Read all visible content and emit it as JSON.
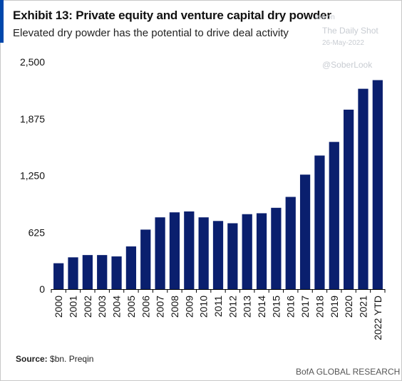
{
  "header": {
    "title": "Exhibit 13: Private equity and venture capital dry powder",
    "subtitle": "Elevated dry powder has the potential to drive deal activity"
  },
  "watermark": {
    "line1": "ted on",
    "line2": "The Daily Shot",
    "line3": "26-May-2022",
    "line4": "@SoberLook"
  },
  "footer": {
    "source_label": "Source:",
    "source_text": "$bn. Preqin",
    "brand": "BofA GLOBAL RESEARCH"
  },
  "colors": {
    "bar": "#0a1f6e",
    "accent": "#0047ab",
    "axis": "#000000"
  },
  "chart_data": {
    "type": "bar",
    "title": "Exhibit 13: Private equity and venture capital dry powder",
    "xlabel": "",
    "ylabel": "",
    "ylim": [
      0,
      2500
    ],
    "yticks": [
      0,
      625,
      1250,
      1875,
      2500
    ],
    "ytick_labels": [
      "0",
      "625",
      "1,250",
      "1,875",
      "2,500"
    ],
    "grid": false,
    "categories": [
      "2000",
      "2001",
      "2002",
      "2003",
      "2004",
      "2005",
      "2006",
      "2007",
      "2008",
      "2009",
      "2010",
      "2011",
      "2012",
      "2013",
      "2014",
      "2015",
      "2016",
      "2017",
      "2018",
      "2019",
      "2020",
      "2021",
      "2022 YTD"
    ],
    "values": [
      285,
      350,
      375,
      375,
      360,
      470,
      655,
      790,
      845,
      855,
      790,
      750,
      725,
      825,
      835,
      895,
      1015,
      1260,
      1470,
      1620,
      1975,
      2205,
      2300
    ]
  }
}
